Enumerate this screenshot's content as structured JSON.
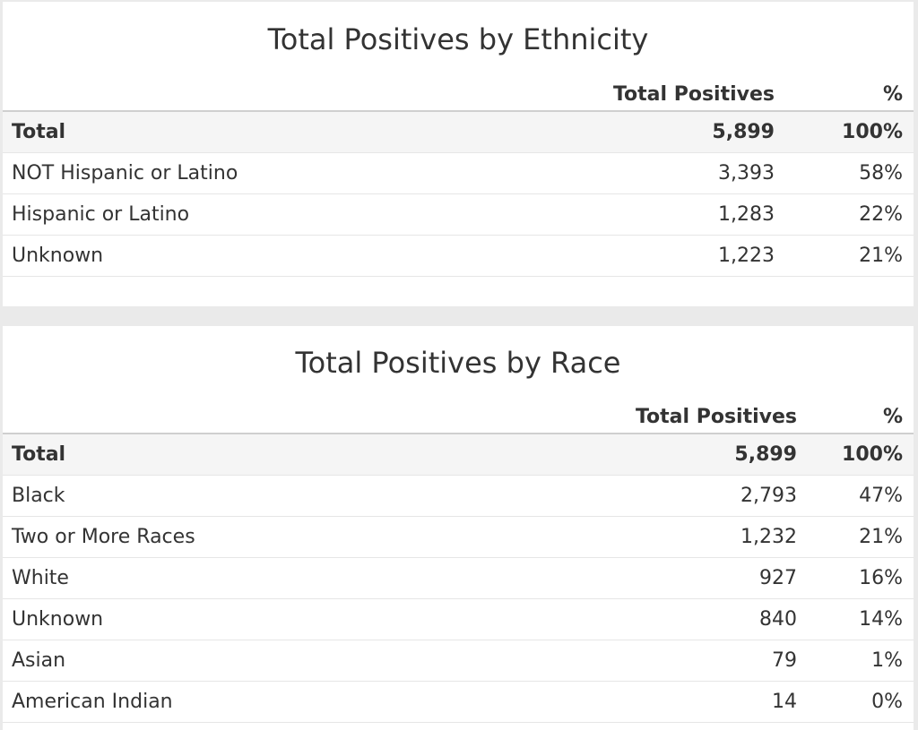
{
  "ethnicity": {
    "title": "Total Positives by Ethnicity",
    "columns": [
      "",
      "Total Positives",
      "%"
    ],
    "rows": [
      {
        "label": "Total",
        "total": "5,899",
        "pct": "100%"
      },
      {
        "label": "NOT Hispanic or Latino",
        "total": "3,393",
        "pct": "58%"
      },
      {
        "label": "Hispanic or Latino",
        "total": "1,283",
        "pct": "22%"
      },
      {
        "label": "Unknown",
        "total": "1,223",
        "pct": "21%"
      }
    ]
  },
  "race": {
    "title": "Total Positives by Race",
    "columns": [
      "",
      "Total Positives",
      "%"
    ],
    "rows": [
      {
        "label": "Total",
        "total": "5,899",
        "pct": "100%"
      },
      {
        "label": "Black",
        "total": "2,793",
        "pct": "47%"
      },
      {
        "label": "Two or More Races",
        "total": "1,232",
        "pct": "21%"
      },
      {
        "label": "White",
        "total": "927",
        "pct": "16%"
      },
      {
        "label": "Unknown",
        "total": "840",
        "pct": "14%"
      },
      {
        "label": "Asian",
        "total": "79",
        "pct": "1%"
      },
      {
        "label": "American Indian",
        "total": "14",
        "pct": "0%"
      }
    ]
  }
}
